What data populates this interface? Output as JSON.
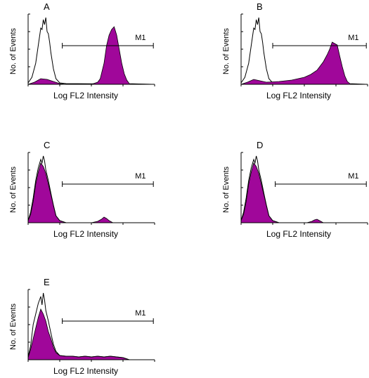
{
  "colors": {
    "fill": "#a0079a",
    "outline": "#000000",
    "axis": "#000000"
  },
  "chart_data": [
    {
      "type": "area",
      "title": "A",
      "xlabel": "Log FL2 Intensity",
      "ylabel": "No. of Events",
      "marker": {
        "label": "M1",
        "range": [
          0.27,
          0.99
        ]
      },
      "series": [
        {
          "name": "",
          "kind": "outline",
          "x": [
            0.0,
            0.03,
            0.06,
            0.08,
            0.1,
            0.11,
            0.12,
            0.13,
            0.14,
            0.15,
            0.16,
            0.17,
            0.18,
            0.2,
            0.22,
            0.25,
            0.3,
            1.0
          ],
          "y": [
            0.02,
            0.1,
            0.3,
            0.55,
            0.8,
            0.78,
            0.92,
            0.85,
            0.95,
            0.75,
            0.72,
            0.6,
            0.45,
            0.22,
            0.08,
            0.02,
            0.01,
            0.0
          ]
        },
        {
          "name": "",
          "kind": "fill",
          "x": [
            0.0,
            0.05,
            0.1,
            0.15,
            0.2,
            0.25,
            0.3,
            0.5,
            0.55,
            0.57,
            0.6,
            0.62,
            0.64,
            0.66,
            0.68,
            0.7,
            0.72,
            0.74,
            0.76,
            0.78,
            0.8,
            1.0
          ],
          "y": [
            0.0,
            0.03,
            0.08,
            0.07,
            0.04,
            0.01,
            0.0,
            0.0,
            0.03,
            0.08,
            0.3,
            0.55,
            0.7,
            0.78,
            0.82,
            0.7,
            0.5,
            0.3,
            0.15,
            0.06,
            0.01,
            0.0
          ]
        }
      ]
    },
    {
      "type": "area",
      "title": "B",
      "xlabel": "Log FL2 Intensity",
      "ylabel": "No. of Events",
      "marker": {
        "label": "M1",
        "range": [
          0.25,
          0.99
        ]
      },
      "series": [
        {
          "name": "",
          "kind": "outline",
          "x": [
            0.0,
            0.03,
            0.06,
            0.08,
            0.1,
            0.11,
            0.12,
            0.13,
            0.14,
            0.15,
            0.16,
            0.17,
            0.18,
            0.2,
            0.22,
            0.25,
            0.3,
            1.0
          ],
          "y": [
            0.02,
            0.1,
            0.3,
            0.55,
            0.8,
            0.78,
            0.92,
            0.85,
            0.95,
            0.75,
            0.72,
            0.6,
            0.45,
            0.22,
            0.08,
            0.02,
            0.01,
            0.0
          ]
        },
        {
          "name": "",
          "kind": "fill",
          "x": [
            0.0,
            0.05,
            0.1,
            0.15,
            0.2,
            0.3,
            0.4,
            0.5,
            0.55,
            0.6,
            0.65,
            0.68,
            0.7,
            0.72,
            0.74,
            0.76,
            0.78,
            0.8,
            0.82,
            0.84,
            0.86,
            1.0
          ],
          "y": [
            0.0,
            0.03,
            0.07,
            0.05,
            0.03,
            0.04,
            0.06,
            0.1,
            0.14,
            0.2,
            0.32,
            0.42,
            0.5,
            0.6,
            0.58,
            0.56,
            0.4,
            0.25,
            0.12,
            0.04,
            0.01,
            0.0
          ]
        }
      ]
    },
    {
      "type": "area",
      "title": "C",
      "xlabel": "Log FL2 Intensity",
      "ylabel": "No. of Events",
      "marker": {
        "label": "M1",
        "range": [
          0.27,
          0.99
        ]
      },
      "series": [
        {
          "name": "",
          "kind": "fill",
          "x": [
            0.0,
            0.02,
            0.04,
            0.06,
            0.08,
            0.1,
            0.12,
            0.14,
            0.16,
            0.18,
            0.2,
            0.22,
            0.25,
            0.3,
            0.5,
            0.55,
            0.58,
            0.6,
            0.62,
            0.64,
            0.67,
            1.0
          ],
          "y": [
            0.03,
            0.12,
            0.3,
            0.55,
            0.72,
            0.85,
            0.8,
            0.7,
            0.55,
            0.4,
            0.25,
            0.1,
            0.03,
            0.0,
            0.0,
            0.02,
            0.05,
            0.08,
            0.06,
            0.03,
            0.0,
            0.0
          ]
        },
        {
          "name": "",
          "kind": "outline",
          "x": [
            0.0,
            0.02,
            0.04,
            0.06,
            0.08,
            0.1,
            0.11,
            0.12,
            0.13,
            0.14,
            0.16,
            0.18,
            0.2,
            0.22,
            0.25,
            0.3,
            1.0
          ],
          "y": [
            0.03,
            0.15,
            0.35,
            0.6,
            0.78,
            0.9,
            0.85,
            0.95,
            0.88,
            0.75,
            0.6,
            0.42,
            0.25,
            0.1,
            0.03,
            0.0,
            0.0
          ]
        }
      ]
    },
    {
      "type": "area",
      "title": "D",
      "xlabel": "Log FL2 Intensity",
      "ylabel": "No. of Events",
      "marker": {
        "label": "M1",
        "range": [
          0.27,
          0.99
        ]
      },
      "series": [
        {
          "name": "",
          "kind": "fill",
          "x": [
            0.0,
            0.02,
            0.04,
            0.06,
            0.08,
            0.1,
            0.12,
            0.14,
            0.16,
            0.18,
            0.2,
            0.22,
            0.25,
            0.3,
            0.52,
            0.56,
            0.58,
            0.6,
            0.62,
            0.65,
            1.0
          ],
          "y": [
            0.03,
            0.12,
            0.3,
            0.55,
            0.72,
            0.85,
            0.8,
            0.7,
            0.55,
            0.4,
            0.25,
            0.1,
            0.03,
            0.0,
            0.0,
            0.02,
            0.04,
            0.05,
            0.03,
            0.0,
            0.0
          ]
        },
        {
          "name": "",
          "kind": "outline",
          "x": [
            0.0,
            0.02,
            0.04,
            0.06,
            0.08,
            0.1,
            0.11,
            0.12,
            0.13,
            0.14,
            0.16,
            0.18,
            0.2,
            0.22,
            0.25,
            0.3,
            1.0
          ],
          "y": [
            0.03,
            0.15,
            0.35,
            0.6,
            0.78,
            0.9,
            0.85,
            0.95,
            0.88,
            0.75,
            0.6,
            0.42,
            0.25,
            0.1,
            0.03,
            0.0,
            0.0
          ]
        }
      ]
    },
    {
      "type": "area",
      "title": "E",
      "xlabel": "Log FL2 Intensity",
      "ylabel": "No. of Events",
      "marker": {
        "label": "M1",
        "range": [
          0.27,
          0.99
        ]
      },
      "series": [
        {
          "name": "",
          "kind": "fill",
          "x": [
            0.0,
            0.02,
            0.04,
            0.06,
            0.08,
            0.1,
            0.12,
            0.14,
            0.16,
            0.18,
            0.2,
            0.22,
            0.25,
            0.3,
            0.35,
            0.4,
            0.45,
            0.5,
            0.55,
            0.6,
            0.65,
            0.7,
            0.75,
            0.8,
            1.0
          ],
          "y": [
            0.03,
            0.15,
            0.3,
            0.45,
            0.6,
            0.72,
            0.65,
            0.55,
            0.4,
            0.3,
            0.18,
            0.1,
            0.06,
            0.05,
            0.05,
            0.04,
            0.05,
            0.04,
            0.05,
            0.04,
            0.05,
            0.04,
            0.03,
            0.0,
            0.0
          ]
        },
        {
          "name": "",
          "kind": "outline",
          "x": [
            0.0,
            0.02,
            0.04,
            0.06,
            0.08,
            0.1,
            0.11,
            0.12,
            0.13,
            0.14,
            0.16,
            0.18,
            0.2,
            0.22,
            0.25,
            0.3,
            0.35,
            0.4,
            0.45,
            0.5,
            0.55,
            0.6,
            0.65,
            0.7,
            0.75,
            0.8,
            1.0
          ],
          "y": [
            0.04,
            0.2,
            0.5,
            0.65,
            0.8,
            0.9,
            0.78,
            0.95,
            0.85,
            0.7,
            0.55,
            0.38,
            0.22,
            0.12,
            0.06,
            0.05,
            0.05,
            0.04,
            0.05,
            0.04,
            0.05,
            0.04,
            0.05,
            0.04,
            0.03,
            0.0,
            0.0
          ]
        }
      ]
    }
  ]
}
